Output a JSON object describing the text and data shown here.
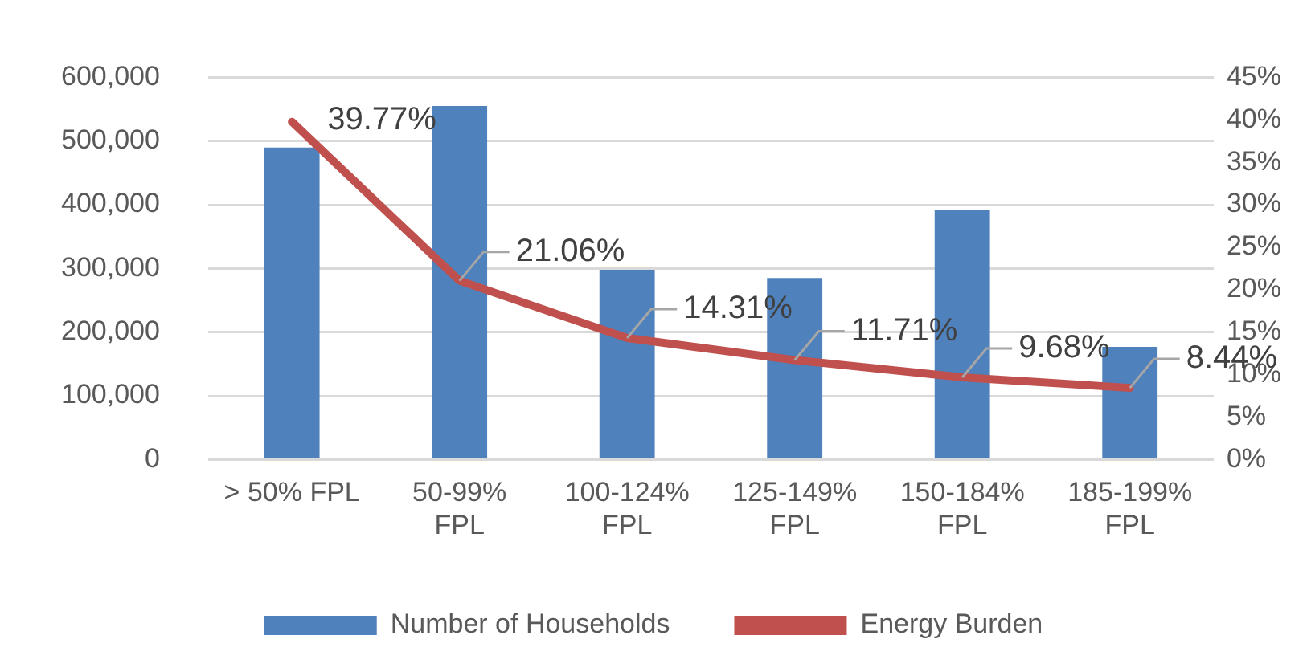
{
  "chart_data": {
    "type": "bar",
    "categories": [
      "> 50% FPL",
      "50-99% FPL",
      "100-124% FPL",
      "125-149% FPL",
      "150-184% FPL",
      "185-199% FPL"
    ],
    "series": [
      {
        "name": "Number of Households",
        "color": "#4f81bd",
        "values": [
          490000,
          555000,
          298000,
          285000,
          392000,
          177000
        ]
      },
      {
        "name": "Energy Burden",
        "type": "line",
        "axis": "y2",
        "color": "#c0504d",
        "values": [
          39.77,
          21.06,
          14.31,
          11.71,
          9.68,
          8.44
        ],
        "value_labels": [
          "39.77%",
          "21.06%",
          "14.31%",
          "11.71%",
          "9.68%",
          "8.44%"
        ]
      }
    ],
    "ylim": [
      0,
      600000
    ],
    "yticks": [
      {
        "value": 0,
        "label": "0"
      },
      {
        "value": 100000,
        "label": "100,000"
      },
      {
        "value": 200000,
        "label": "200,000"
      },
      {
        "value": 300000,
        "label": "300,000"
      },
      {
        "value": 400000,
        "label": "400,000"
      },
      {
        "value": 500000,
        "label": "500,000"
      },
      {
        "value": 600000,
        "label": "600,000"
      }
    ],
    "y2lim": [
      0,
      45
    ],
    "y2ticks": [
      {
        "value": 0,
        "label": "0%"
      },
      {
        "value": 5,
        "label": "5%"
      },
      {
        "value": 10,
        "label": "10%"
      },
      {
        "value": 15,
        "label": "15%"
      },
      {
        "value": 20,
        "label": "20%"
      },
      {
        "value": 25,
        "label": "25%"
      },
      {
        "value": 30,
        "label": "30%"
      },
      {
        "value": 35,
        "label": "35%"
      },
      {
        "value": 40,
        "label": "40%"
      },
      {
        "value": 45,
        "label": "45%"
      }
    ],
    "grid": "y",
    "legend": "bottom",
    "marker": "none",
    "line_style": "solid"
  }
}
